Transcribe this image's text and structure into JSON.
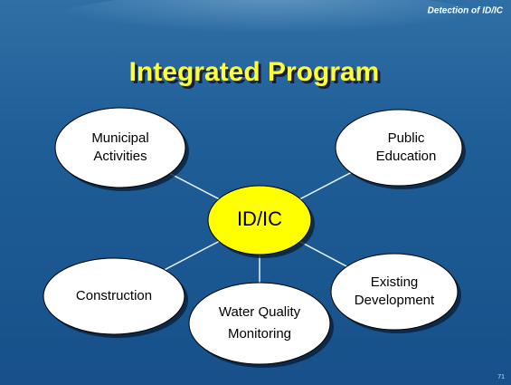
{
  "header": {
    "title": "Detection of ID/IC"
  },
  "title": "Integrated Program",
  "center": {
    "label": "ID/IC"
  },
  "nodes": [
    {
      "label": [
        "Municipal",
        "Activities"
      ]
    },
    {
      "label": [
        "Public",
        "Education"
      ]
    },
    {
      "label": [
        "Construction"
      ]
    },
    {
      "label": [
        "Water Quality",
        "Monitoring"
      ]
    },
    {
      "label": [
        "Existing",
        "Development"
      ]
    }
  ],
  "page_number": "71"
}
